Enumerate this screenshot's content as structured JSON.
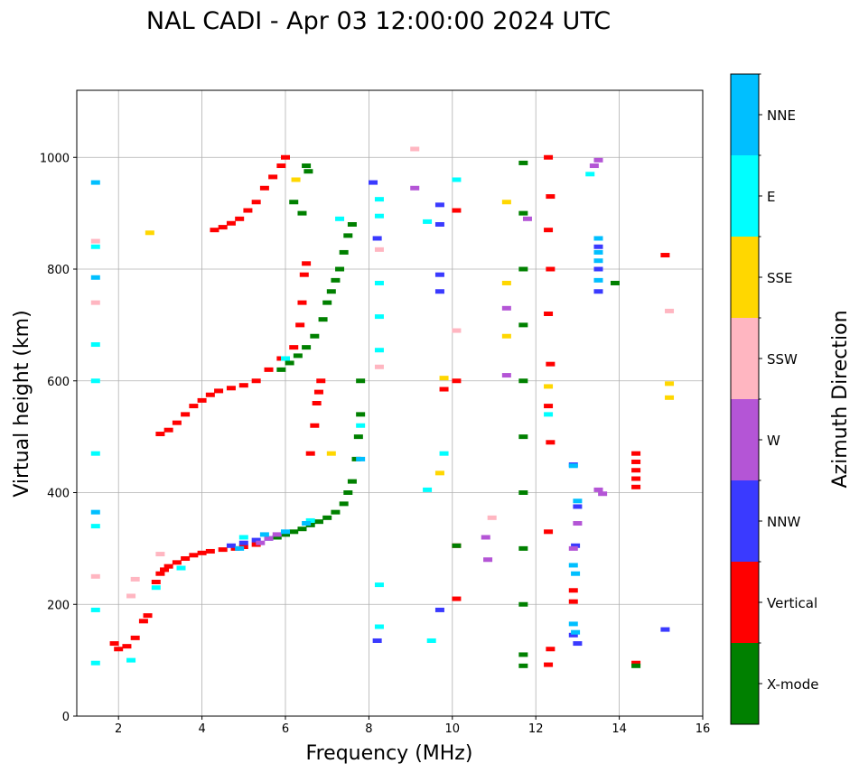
{
  "chart_data": {
    "type": "scatter",
    "title": "NAL CADI - Apr 03 12:00:00 2024 UTC",
    "xlabel": "Frequency (MHz)",
    "ylabel": "Virtual height (km)",
    "xlim": [
      1,
      16
    ],
    "ylim": [
      0,
      1120
    ],
    "xticks": [
      2,
      4,
      6,
      8,
      10,
      12,
      14,
      16
    ],
    "yticks": [
      0,
      200,
      400,
      600,
      800,
      1000
    ],
    "grid": true,
    "colorbar": {
      "label": "Azimuth Direction",
      "entries": [
        {
          "name": "X-mode",
          "color": "#008000"
        },
        {
          "name": "Vertical",
          "color": "#ff0000"
        },
        {
          "name": "NNW",
          "color": "#3a3aff"
        },
        {
          "name": "W",
          "color": "#b455d6"
        },
        {
          "name": "SSW",
          "color": "#ffb6c1"
        },
        {
          "name": "SSE",
          "color": "#ffd700"
        },
        {
          "name": "E",
          "color": "#00ffff"
        },
        {
          "name": "NNE",
          "color": "#00bfff"
        }
      ]
    },
    "series": [
      {
        "name": "Vertical",
        "color": "#ff0000",
        "points": [
          [
            2.9,
            240
          ],
          [
            3.0,
            255
          ],
          [
            3.1,
            262
          ],
          [
            3.2,
            268
          ],
          [
            3.4,
            275
          ],
          [
            3.6,
            282
          ],
          [
            3.8,
            288
          ],
          [
            4.0,
            292
          ],
          [
            4.2,
            295
          ],
          [
            4.5,
            298
          ],
          [
            4.8,
            300
          ],
          [
            5.0,
            303
          ],
          [
            5.3,
            307
          ],
          [
            3.0,
            505
          ],
          [
            3.2,
            512
          ],
          [
            3.4,
            525
          ],
          [
            3.6,
            540
          ],
          [
            3.8,
            555
          ],
          [
            4.0,
            565
          ],
          [
            4.2,
            575
          ],
          [
            4.4,
            582
          ],
          [
            4.7,
            587
          ],
          [
            5.0,
            592
          ],
          [
            5.3,
            600
          ],
          [
            5.6,
            620
          ],
          [
            5.9,
            640
          ],
          [
            6.2,
            660
          ],
          [
            6.35,
            700
          ],
          [
            6.4,
            740
          ],
          [
            6.45,
            790
          ],
          [
            6.5,
            810
          ],
          [
            4.3,
            870
          ],
          [
            4.5,
            875
          ],
          [
            4.7,
            882
          ],
          [
            4.9,
            890
          ],
          [
            5.1,
            905
          ],
          [
            5.3,
            920
          ],
          [
            5.5,
            945
          ],
          [
            5.7,
            965
          ],
          [
            5.9,
            985
          ],
          [
            6.0,
            1000
          ],
          [
            6.6,
            470
          ],
          [
            6.7,
            520
          ],
          [
            6.75,
            560
          ],
          [
            6.8,
            580
          ],
          [
            6.85,
            600
          ],
          [
            1.9,
            130
          ],
          [
            2.0,
            120
          ],
          [
            2.2,
            125
          ],
          [
            2.4,
            140
          ],
          [
            2.6,
            170
          ],
          [
            2.7,
            180
          ],
          [
            12.3,
            1000
          ],
          [
            12.35,
            930
          ],
          [
            12.3,
            870
          ],
          [
            12.35,
            800
          ],
          [
            12.3,
            720
          ],
          [
            12.35,
            630
          ],
          [
            12.3,
            555
          ],
          [
            12.35,
            490
          ],
          [
            12.3,
            330
          ],
          [
            12.35,
            120
          ],
          [
            12.3,
            92
          ],
          [
            12.9,
            225
          ],
          [
            12.9,
            205
          ],
          [
            14.4,
            470
          ],
          [
            14.4,
            455
          ],
          [
            14.4,
            440
          ],
          [
            14.4,
            425
          ],
          [
            14.4,
            410
          ],
          [
            14.4,
            95
          ],
          [
            15.1,
            825
          ],
          [
            10.1,
            905
          ],
          [
            10.1,
            600
          ],
          [
            10.1,
            305
          ],
          [
            10.1,
            210
          ],
          [
            9.8,
            585
          ]
        ]
      },
      {
        "name": "X-mode",
        "color": "#008000",
        "points": [
          [
            5.8,
            320
          ],
          [
            6.0,
            325
          ],
          [
            6.2,
            330
          ],
          [
            6.4,
            335
          ],
          [
            6.6,
            342
          ],
          [
            6.8,
            348
          ],
          [
            7.0,
            355
          ],
          [
            7.2,
            365
          ],
          [
            7.4,
            380
          ],
          [
            7.5,
            400
          ],
          [
            7.6,
            420
          ],
          [
            7.7,
            460
          ],
          [
            7.75,
            500
          ],
          [
            7.8,
            540
          ],
          [
            7.8,
            600
          ],
          [
            5.9,
            620
          ],
          [
            6.1,
            632
          ],
          [
            6.3,
            645
          ],
          [
            6.5,
            660
          ],
          [
            6.7,
            680
          ],
          [
            6.9,
            710
          ],
          [
            7.0,
            740
          ],
          [
            7.1,
            760
          ],
          [
            7.2,
            780
          ],
          [
            7.3,
            800
          ],
          [
            7.4,
            830
          ],
          [
            7.5,
            860
          ],
          [
            7.6,
            880
          ],
          [
            6.5,
            985
          ],
          [
            6.55,
            975
          ],
          [
            6.2,
            920
          ],
          [
            6.4,
            900
          ],
          [
            11.7,
            990
          ],
          [
            11.7,
            900
          ],
          [
            11.7,
            800
          ],
          [
            11.7,
            700
          ],
          [
            11.7,
            600
          ],
          [
            11.7,
            500
          ],
          [
            11.7,
            400
          ],
          [
            11.7,
            300
          ],
          [
            11.7,
            200
          ],
          [
            11.7,
            110
          ],
          [
            11.7,
            90
          ],
          [
            14.4,
            90
          ],
          [
            13.9,
            775
          ],
          [
            10.1,
            305
          ]
        ]
      },
      {
        "name": "NNW",
        "color": "#3a3aff",
        "points": [
          [
            4.7,
            305
          ],
          [
            5.0,
            310
          ],
          [
            5.3,
            315
          ],
          [
            5.6,
            318
          ],
          [
            8.1,
            955
          ],
          [
            8.2,
            855
          ],
          [
            8.2,
            135
          ],
          [
            9.7,
            915
          ],
          [
            9.7,
            880
          ],
          [
            9.7,
            790
          ],
          [
            9.7,
            760
          ],
          [
            9.7,
            190
          ],
          [
            12.9,
            450
          ],
          [
            13.0,
            375
          ],
          [
            12.95,
            305
          ],
          [
            12.9,
            145
          ],
          [
            13.0,
            130
          ],
          [
            13.5,
            840
          ],
          [
            13.5,
            800
          ],
          [
            13.5,
            760
          ],
          [
            15.1,
            155
          ]
        ]
      },
      {
        "name": "W",
        "color": "#b455d6",
        "points": [
          [
            5.4,
            310
          ],
          [
            5.6,
            318
          ],
          [
            5.8,
            325
          ],
          [
            9.1,
            945
          ],
          [
            10.85,
            280
          ],
          [
            10.8,
            320
          ],
          [
            11.3,
            730
          ],
          [
            11.3,
            610
          ],
          [
            11.8,
            890
          ],
          [
            13.5,
            995
          ],
          [
            13.4,
            985
          ],
          [
            13.0,
            345
          ],
          [
            12.9,
            300
          ],
          [
            13.5,
            405
          ],
          [
            13.6,
            398
          ]
        ]
      },
      {
        "name": "SSW",
        "color": "#ffb6c1",
        "points": [
          [
            1.45,
            850
          ],
          [
            1.45,
            740
          ],
          [
            1.45,
            250
          ],
          [
            2.3,
            215
          ],
          [
            2.4,
            245
          ],
          [
            3.0,
            290
          ],
          [
            8.25,
            835
          ],
          [
            8.25,
            625
          ],
          [
            9.1,
            1015
          ],
          [
            10.1,
            690
          ],
          [
            10.95,
            355
          ],
          [
            15.2,
            725
          ]
        ]
      },
      {
        "name": "SSE",
        "color": "#ffd700",
        "points": [
          [
            2.75,
            865
          ],
          [
            6.25,
            960
          ],
          [
            7.1,
            470
          ],
          [
            9.8,
            605
          ],
          [
            9.7,
            435
          ],
          [
            11.3,
            920
          ],
          [
            11.3,
            775
          ],
          [
            11.3,
            680
          ],
          [
            12.3,
            590
          ],
          [
            15.2,
            595
          ],
          [
            15.2,
            570
          ]
        ]
      },
      {
        "name": "E",
        "color": "#00ffff",
        "points": [
          [
            1.45,
            840
          ],
          [
            1.45,
            665
          ],
          [
            1.45,
            600
          ],
          [
            1.45,
            470
          ],
          [
            1.45,
            340
          ],
          [
            1.45,
            190
          ],
          [
            1.45,
            95
          ],
          [
            2.3,
            100
          ],
          [
            2.9,
            230
          ],
          [
            3.5,
            265
          ],
          [
            5.0,
            320
          ],
          [
            6.0,
            640
          ],
          [
            6.6,
            350
          ],
          [
            7.3,
            890
          ],
          [
            7.8,
            520
          ],
          [
            8.25,
            925
          ],
          [
            8.25,
            895
          ],
          [
            8.25,
            775
          ],
          [
            8.25,
            715
          ],
          [
            8.25,
            655
          ],
          [
            8.25,
            235
          ],
          [
            8.25,
            160
          ],
          [
            9.4,
            885
          ],
          [
            9.4,
            405
          ],
          [
            9.5,
            135
          ],
          [
            9.8,
            470
          ],
          [
            10.1,
            960
          ],
          [
            12.3,
            540
          ],
          [
            13.3,
            970
          ]
        ]
      },
      {
        "name": "NNE",
        "color": "#00bfff",
        "points": [
          [
            1.45,
            955
          ],
          [
            1.45,
            785
          ],
          [
            1.45,
            365
          ],
          [
            4.9,
            300
          ],
          [
            5.5,
            325
          ],
          [
            6.0,
            330
          ],
          [
            6.5,
            345
          ],
          [
            7.8,
            460
          ],
          [
            12.9,
            448
          ],
          [
            13.0,
            385
          ],
          [
            12.9,
            270
          ],
          [
            12.95,
            255
          ],
          [
            12.9,
            165
          ],
          [
            12.95,
            150
          ],
          [
            13.5,
            855
          ],
          [
            13.5,
            830
          ],
          [
            13.5,
            815
          ],
          [
            13.5,
            780
          ]
        ]
      }
    ]
  }
}
